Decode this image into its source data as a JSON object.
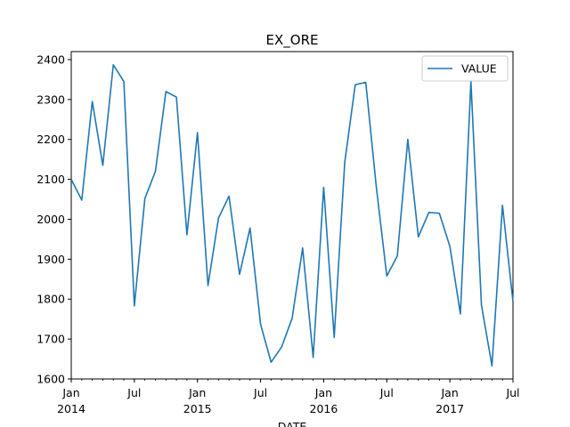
{
  "chart_data": {
    "type": "line",
    "title": "EX_ORE",
    "xlabel": "DATE",
    "ylabel": "",
    "ylim": [
      1600,
      2420
    ],
    "yticks": [
      1600,
      1700,
      1800,
      1900,
      2000,
      2100,
      2200,
      2300,
      2400
    ],
    "xlim": [
      "2014-01",
      "2017-07"
    ],
    "xticks": [
      {
        "date": "2014-01",
        "label": "Jan",
        "year": "2014"
      },
      {
        "date": "2014-07",
        "label": "Jul",
        "year": ""
      },
      {
        "date": "2015-01",
        "label": "Jan",
        "year": "2015"
      },
      {
        "date": "2015-07",
        "label": "Jul",
        "year": ""
      },
      {
        "date": "2016-01",
        "label": "Jan",
        "year": "2016"
      },
      {
        "date": "2016-07",
        "label": "Jul",
        "year": ""
      },
      {
        "date": "2017-01",
        "label": "Jan",
        "year": "2017"
      },
      {
        "date": "2017-07",
        "label": "Jul",
        "year": ""
      }
    ],
    "legend": {
      "position": "top-right"
    },
    "grid": false,
    "series": [
      {
        "name": "VALUE",
        "color": "#1f77b4",
        "x": [
          "2014-01",
          "2014-02",
          "2014-03",
          "2014-04",
          "2014-05",
          "2014-06",
          "2014-07",
          "2014-08",
          "2014-09",
          "2014-10",
          "2014-11",
          "2014-12",
          "2015-01",
          "2015-02",
          "2015-03",
          "2015-04",
          "2015-05",
          "2015-06",
          "2015-07",
          "2015-08",
          "2015-09",
          "2015-10",
          "2015-11",
          "2015-12",
          "2016-01",
          "2016-02",
          "2016-03",
          "2016-04",
          "2016-05",
          "2016-06",
          "2016-07",
          "2016-08",
          "2016-09",
          "2016-10",
          "2016-11",
          "2016-12",
          "2017-01",
          "2017-02",
          "2017-03",
          "2017-04",
          "2017-05",
          "2017-06",
          "2017-07"
        ],
        "values": [
          2100,
          2048,
          2295,
          2135,
          2387,
          2345,
          1783,
          2052,
          2120,
          2320,
          2306,
          1961,
          2217,
          1834,
          2003,
          2058,
          1862,
          1978,
          1737,
          1642,
          1680,
          1752,
          1928,
          1654,
          2080,
          1704,
          2142,
          2337,
          2343,
          2082,
          1858,
          1908,
          2200,
          1956,
          2017,
          2015,
          1932,
          1763,
          2345,
          1785,
          1633,
          2035,
          1793
        ]
      }
    ]
  }
}
